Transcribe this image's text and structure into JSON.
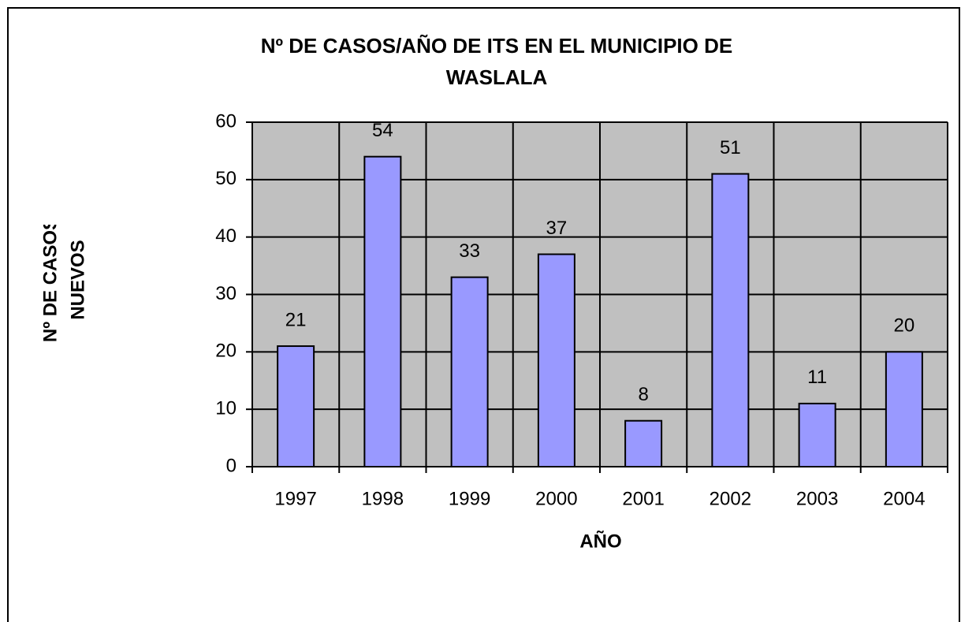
{
  "chart_data": {
    "type": "bar",
    "title": [
      "Nº DE CASOS/AÑO DE ITS EN EL MUNICIPIO DE",
      "WASLALA"
    ],
    "x_label": "AÑO",
    "y_label": [
      "Nº DE CASOS",
      "NUEVOS"
    ],
    "categories": [
      "1997",
      "1998",
      "1999",
      "2000",
      "2001",
      "2002",
      "2003",
      "2004"
    ],
    "values": [
      21,
      54,
      33,
      37,
      8,
      51,
      11,
      20
    ],
    "color": "#9999ff",
    "ylim": [
      0,
      60
    ],
    "yticks": [
      0,
      10,
      20,
      30,
      40,
      50,
      60
    ],
    "grid": true
  }
}
